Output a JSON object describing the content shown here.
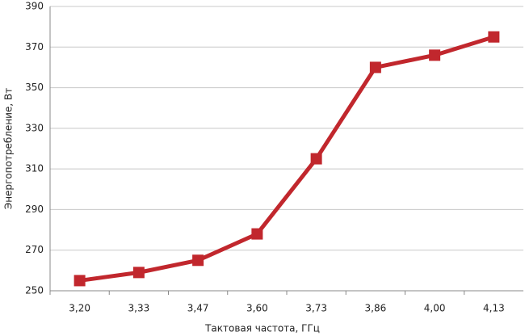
{
  "chart_data": {
    "type": "line",
    "x_label": "Тактовая частота, ГГц",
    "y_label": "Энергопотребление, Вт",
    "categories": [
      "3,20",
      "3,33",
      "3,47",
      "3,60",
      "3,73",
      "3,86",
      "4,00",
      "4,13"
    ],
    "series": [
      {
        "color": "#c1272d",
        "values": [
          255,
          259,
          265,
          278,
          315,
          360,
          366,
          375
        ]
      }
    ],
    "ylim": [
      250,
      390
    ],
    "yticks": [
      250,
      270,
      290,
      310,
      330,
      350,
      370,
      390
    ],
    "grid": true
  }
}
